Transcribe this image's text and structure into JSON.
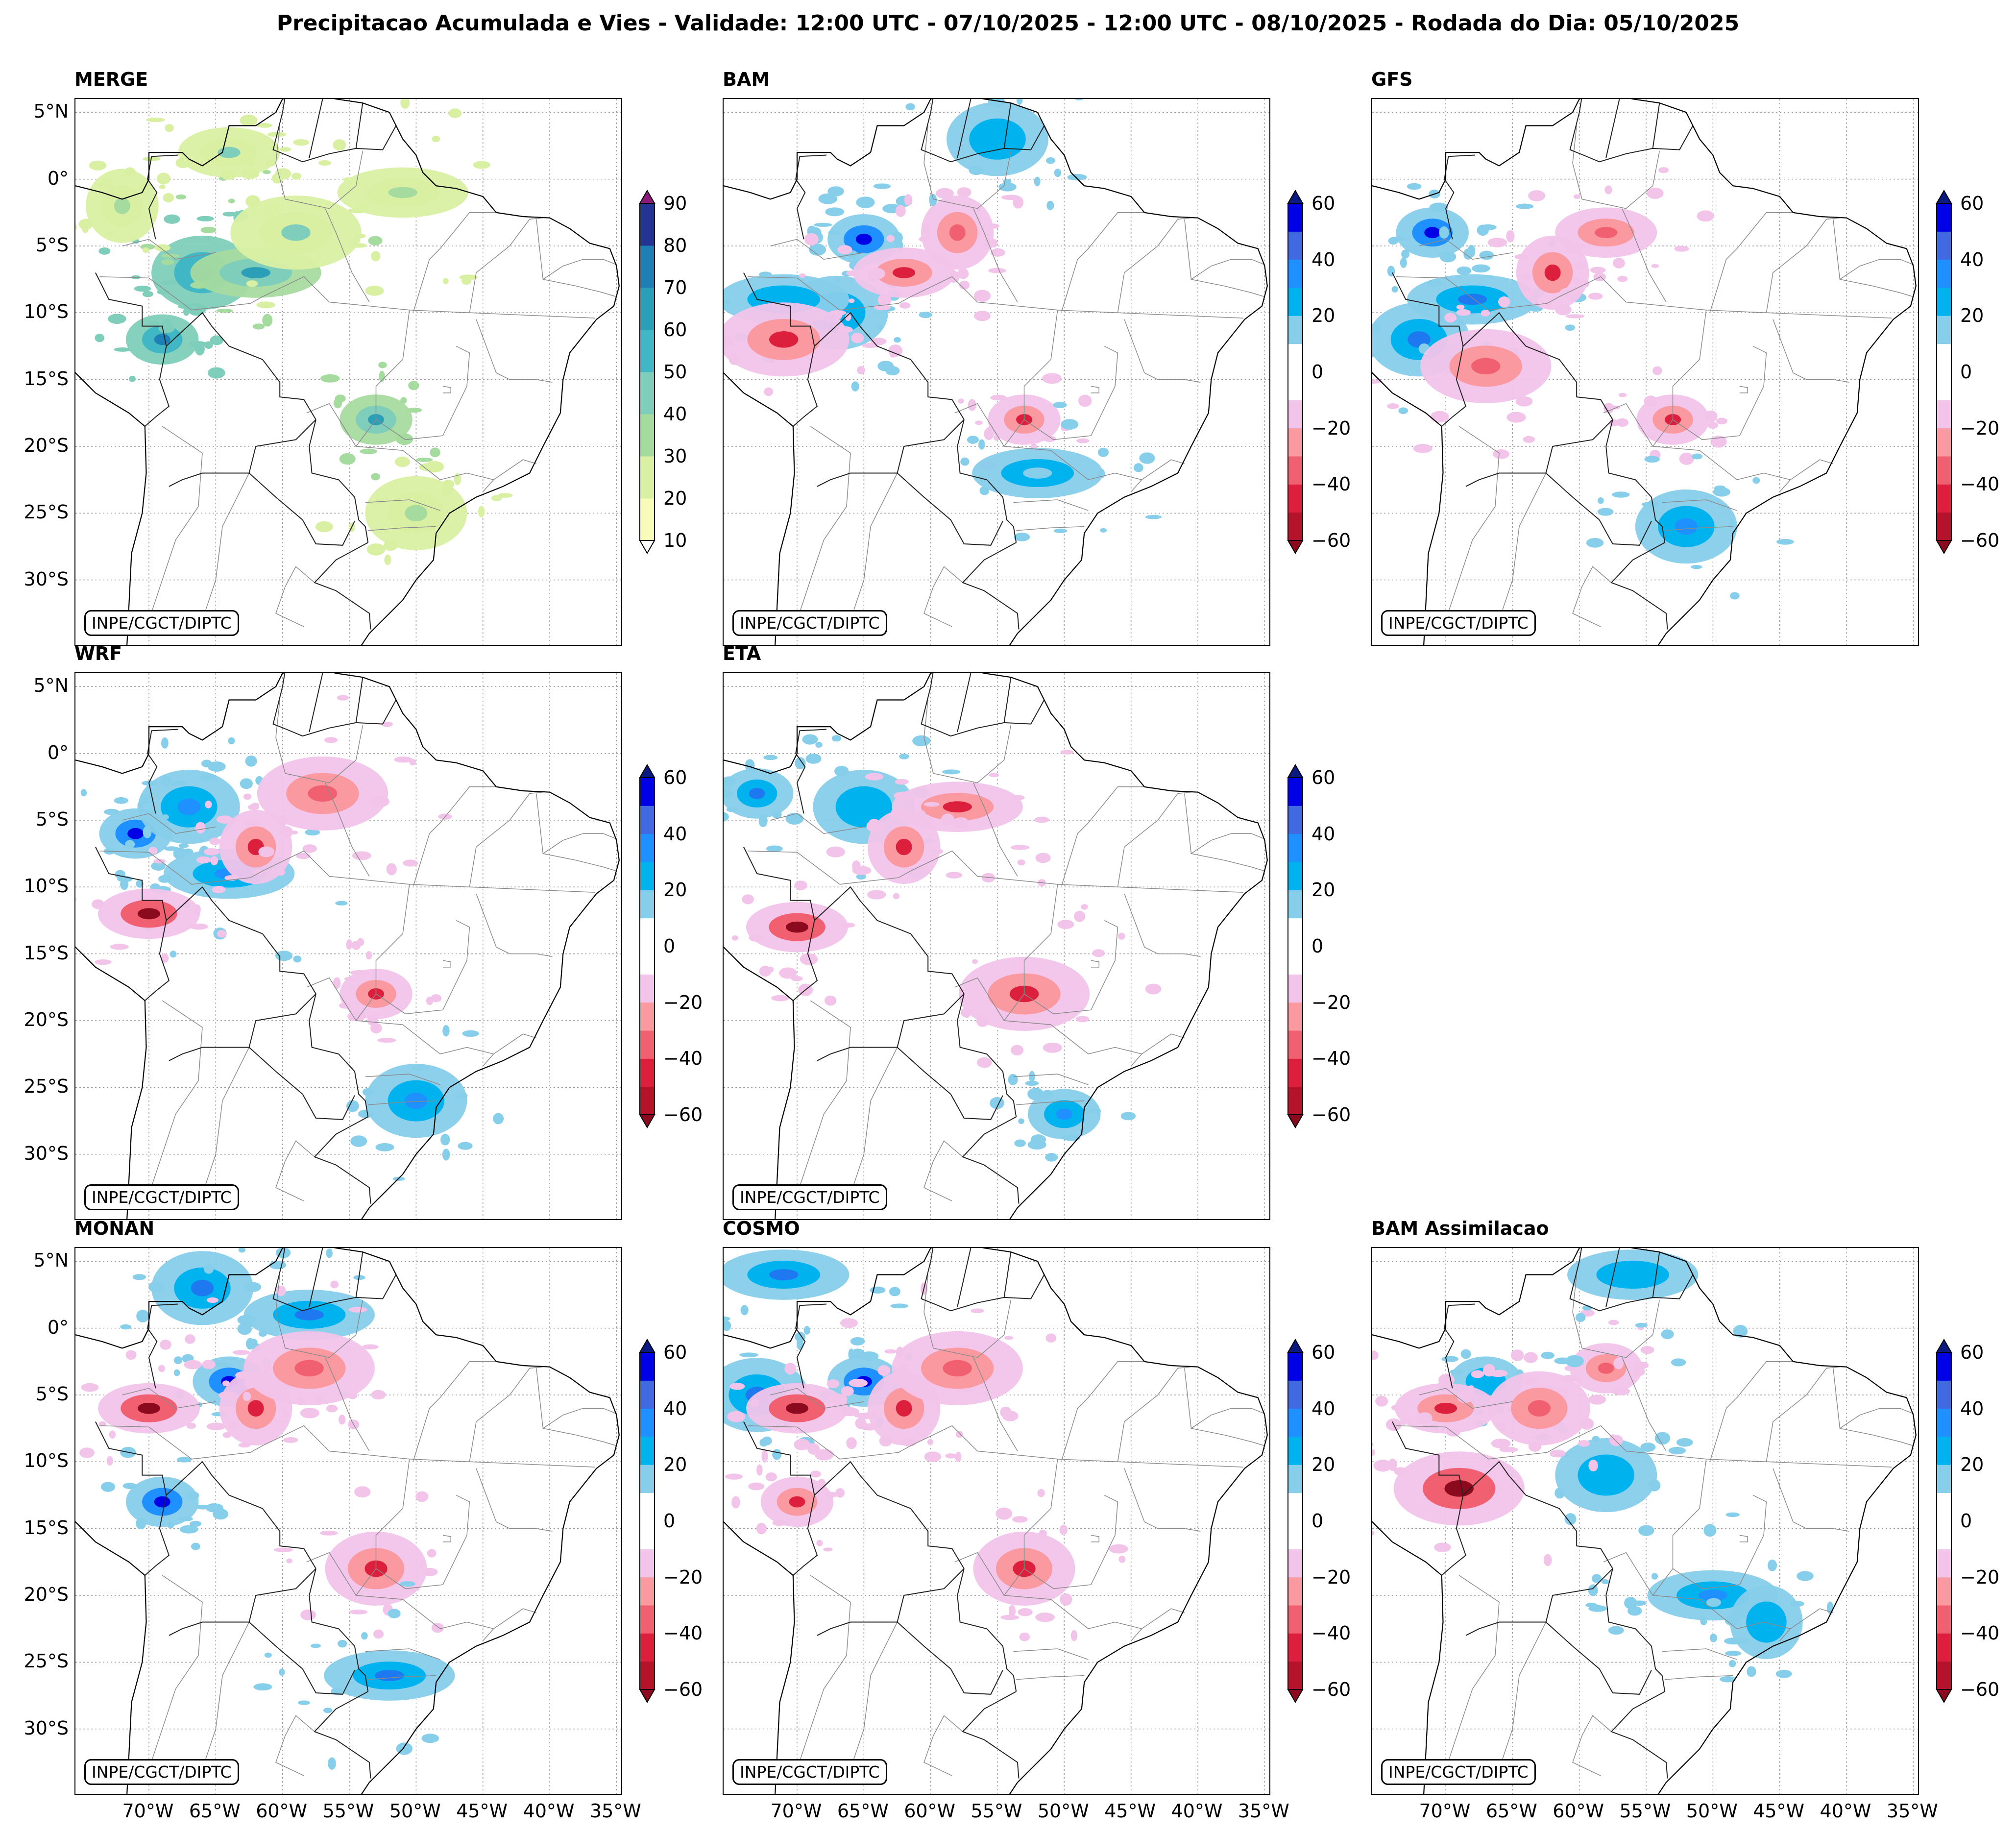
{
  "title": "Precipitacao Acumulada e Vies - Validade: 12:00 UTC - 07/10/2025 - 12:00 UTC - 08/10/2025 - Rodada do Dia: 05/10/2025",
  "credit": "INPE/CGCT/DIPTC",
  "lat_ticks": [
    "5°N",
    "0°",
    "5°S",
    "10°S",
    "15°S",
    "20°S",
    "25°S",
    "30°S"
  ],
  "lon_ticks": [
    "70°W",
    "65°W",
    "60°W",
    "55°W",
    "50°W",
    "45°W",
    "40°W",
    "35°W"
  ],
  "chart_data": [
    {
      "type": "heatmap",
      "title": "MERGE",
      "variable": "precipitation (mm)",
      "colorbar": {
        "ticks": [
          10,
          20,
          30,
          40,
          50,
          60,
          70,
          80,
          90
        ],
        "tick_labels": [
          "10",
          "20",
          "30",
          "40",
          "50",
          "60",
          "70",
          "80",
          "90"
        ],
        "colors": [
          "#f7fcb9",
          "#d9f0a3",
          "#a6dba0",
          "#7fcdbb",
          "#41b6c4",
          "#2c9fb8",
          "#1d7fb4",
          "#253494",
          "#2a2a8a",
          "#081d58"
        ]
      },
      "features": [
        {
          "lon": -69,
          "lat": -12,
          "value": 60
        },
        {
          "lon": -66,
          "lat": -7,
          "value": 60
        },
        {
          "lon": -62,
          "lat": -7,
          "value": 50
        },
        {
          "lon": -72,
          "lat": -2,
          "value": 20
        },
        {
          "lon": -64,
          "lat": 2,
          "value": 30
        },
        {
          "lon": -59,
          "lat": -4,
          "value": 30
        },
        {
          "lon": -53,
          "lat": -18,
          "value": 50
        },
        {
          "lon": -50,
          "lat": -25,
          "value": 20
        },
        {
          "lon": -51,
          "lat": -1,
          "value": 20
        }
      ]
    },
    {
      "type": "heatmap",
      "title": "BAM",
      "variable": "bias (mm)",
      "colorbar": {
        "ticks": [
          -60,
          -40,
          -20,
          0,
          20,
          40,
          60
        ],
        "tick_labels": [
          "−60",
          "−40",
          "−20",
          "0",
          "20",
          "40",
          "60"
        ]
      },
      "features": [
        {
          "lon": -65,
          "lat": -4.5,
          "value": 50
        },
        {
          "lon": -67,
          "lat": -10,
          "value": 20
        },
        {
          "lon": -71,
          "lat": -9,
          "value": 20
        },
        {
          "lon": -58,
          "lat": -4,
          "value": -30
        },
        {
          "lon": -62,
          "lat": -7,
          "value": -40
        },
        {
          "lon": -71,
          "lat": -12,
          "value": -40
        },
        {
          "lon": -53,
          "lat": -18,
          "value": -40
        },
        {
          "lon": -55,
          "lat": 3,
          "value": 20
        },
        {
          "lon": -52,
          "lat": -22,
          "value": 15
        }
      ]
    },
    {
      "type": "heatmap",
      "title": "GFS",
      "variable": "bias (mm)",
      "colorbar": {
        "ticks": [
          -60,
          -40,
          -20,
          0,
          20,
          40,
          60
        ],
        "tick_labels": [
          "−60",
          "−40",
          "−20",
          "0",
          "20",
          "40",
          "60"
        ]
      },
      "features": [
        {
          "lon": -71,
          "lat": -4,
          "value": 50
        },
        {
          "lon": -72,
          "lat": -12,
          "value": 40
        },
        {
          "lon": -68,
          "lat": -9,
          "value": 40
        },
        {
          "lon": -62,
          "lat": -7,
          "value": -40
        },
        {
          "lon": -58,
          "lat": -4,
          "value": -30
        },
        {
          "lon": -67,
          "lat": -14,
          "value": -30
        },
        {
          "lon": -53,
          "lat": -18,
          "value": -40
        },
        {
          "lon": -52,
          "lat": -26,
          "value": 30
        }
      ]
    },
    {
      "type": "heatmap",
      "title": "WRF",
      "variable": "bias (mm)",
      "colorbar": {
        "ticks": [
          -60,
          -40,
          -20,
          0,
          20,
          40,
          60
        ],
        "tick_labels": [
          "−60",
          "−40",
          "−20",
          "0",
          "20",
          "40",
          "60"
        ]
      },
      "features": [
        {
          "lon": -71,
          "lat": -6,
          "value": 50
        },
        {
          "lon": -67,
          "lat": -4,
          "value": 30
        },
        {
          "lon": -64,
          "lat": -9,
          "value": 30
        },
        {
          "lon": -62,
          "lat": -7,
          "value": -40
        },
        {
          "lon": -70,
          "lat": -12,
          "value": -50
        },
        {
          "lon": -57,
          "lat": -3,
          "value": -30
        },
        {
          "lon": -53,
          "lat": -18,
          "value": -40
        },
        {
          "lon": -50,
          "lat": -26,
          "value": 30
        }
      ]
    },
    {
      "type": "heatmap",
      "title": "ETA",
      "variable": "bias (mm)",
      "colorbar": {
        "ticks": [
          -60,
          -40,
          -20,
          0,
          20,
          40,
          60
        ],
        "tick_labels": [
          "−60",
          "−40",
          "−20",
          "0",
          "20",
          "40",
          "60"
        ]
      },
      "features": [
        {
          "lon": -73,
          "lat": -3,
          "value": 40
        },
        {
          "lon": -65,
          "lat": -4,
          "value": 20
        },
        {
          "lon": -58,
          "lat": -4,
          "value": -40
        },
        {
          "lon": -62,
          "lat": -7,
          "value": -40
        },
        {
          "lon": -70,
          "lat": -13,
          "value": -50
        },
        {
          "lon": -53,
          "lat": -18,
          "value": -40
        },
        {
          "lon": -50,
          "lat": -27,
          "value": 30
        }
      ]
    },
    {
      "type": "heatmap",
      "title": "MONAN",
      "variable": "bias (mm)",
      "colorbar": {
        "ticks": [
          -60,
          -40,
          -20,
          0,
          20,
          40,
          60
        ],
        "tick_labels": [
          "−60",
          "−40",
          "−20",
          "0",
          "20",
          "40",
          "60"
        ]
      },
      "features": [
        {
          "lon": -64,
          "lat": -4,
          "value": 50
        },
        {
          "lon": -66,
          "lat": 3,
          "value": 40
        },
        {
          "lon": -58,
          "lat": 1,
          "value": 40
        },
        {
          "lon": -62,
          "lat": -6,
          "value": -40
        },
        {
          "lon": -70,
          "lat": -6,
          "value": -50
        },
        {
          "lon": -58,
          "lat": -3,
          "value": -30
        },
        {
          "lon": -69,
          "lat": -13,
          "value": 50
        },
        {
          "lon": -53,
          "lat": -18,
          "value": -40
        },
        {
          "lon": -52,
          "lat": -26,
          "value": 40
        }
      ]
    },
    {
      "type": "heatmap",
      "title": "COSMO",
      "variable": "bias (mm)",
      "colorbar": {
        "ticks": [
          -60,
          -40,
          -20,
          0,
          20,
          40,
          60
        ],
        "tick_labels": [
          "−60",
          "−40",
          "−20",
          "0",
          "20",
          "40",
          "60"
        ]
      },
      "features": [
        {
          "lon": -65,
          "lat": -4,
          "value": 50
        },
        {
          "lon": -73,
          "lat": -5,
          "value": 40
        },
        {
          "lon": -71,
          "lat": 4,
          "value": 40
        },
        {
          "lon": -62,
          "lat": -6,
          "value": -40
        },
        {
          "lon": -70,
          "lat": -6,
          "value": -50
        },
        {
          "lon": -58,
          "lat": -3,
          "value": -30
        },
        {
          "lon": -70,
          "lat": -13,
          "value": -40
        },
        {
          "lon": -53,
          "lat": -18,
          "value": -40
        }
      ]
    },
    {
      "type": "heatmap",
      "title": "BAM Assimilacao",
      "variable": "bias (mm)",
      "colorbar": {
        "ticks": [
          -60,
          -40,
          -20,
          0,
          20,
          40,
          60
        ],
        "tick_labels": [
          "−60",
          "−40",
          "−20",
          "0",
          "20",
          "40",
          "60"
        ]
      },
      "features": [
        {
          "lon": -67,
          "lat": -4,
          "value": 20
        },
        {
          "lon": -58,
          "lat": -11,
          "value": 25
        },
        {
          "lon": -50,
          "lat": -20,
          "value": 30
        },
        {
          "lon": -46,
          "lat": -22,
          "value": 20
        },
        {
          "lon": -70,
          "lat": -6,
          "value": -40
        },
        {
          "lon": -69,
          "lat": -12,
          "value": -50
        },
        {
          "lon": -58,
          "lat": -3,
          "value": -30
        },
        {
          "lon": -63,
          "lat": -6,
          "value": -30
        },
        {
          "lon": -56,
          "lat": 4,
          "value": 20
        }
      ]
    }
  ]
}
